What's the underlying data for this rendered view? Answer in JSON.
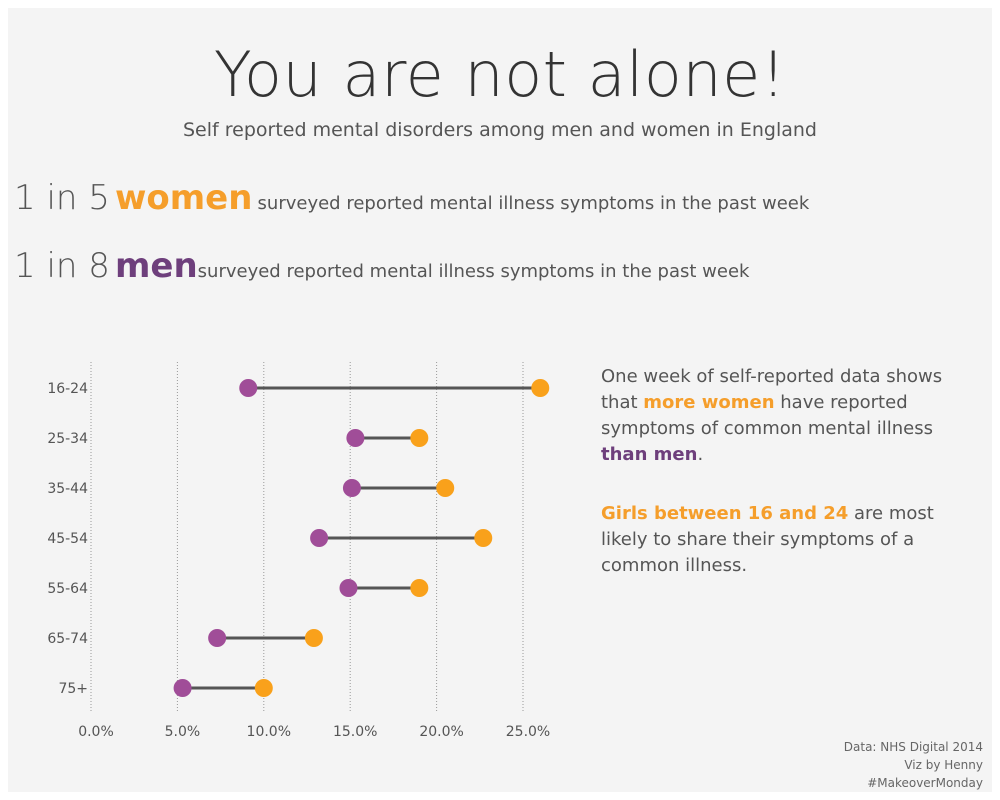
{
  "title": "You are not alone!",
  "subtitle": "Self reported mental disorders among men and women in England",
  "stats": {
    "women": {
      "prefix": "1 in 5",
      "group": "women",
      "text": "surveyed reported mental illness symptoms in the past week"
    },
    "men": {
      "prefix": "1 in 8",
      "group": "men",
      "text": "surveyed reported mental illness symptoms in the past week"
    }
  },
  "notes": {
    "p1_a": "One week of self-reported data shows that ",
    "p1_b": "more women",
    "p1_c": " have reported symptoms of common mental illness ",
    "p1_d": "than men",
    "p1_e": ".",
    "p2_a": "Girls between 16 and 24",
    "p2_b": " are most likely to share their symptoms of a common illness."
  },
  "credits": {
    "line1": "Data: NHS Digital 2014",
    "line2": "Viz by Henny",
    "line3": "#MakeoverMonday"
  },
  "colors": {
    "women": "#f9a11b",
    "men": "#a04d98",
    "connector": "#555555",
    "grid": "#999999"
  },
  "chart_data": {
    "type": "dumbbell",
    "categories": [
      "16-24",
      "25-34",
      "35-44",
      "45-54",
      "55-64",
      "65-74",
      "75+"
    ],
    "series": [
      {
        "values": [
          9.1,
          15.3,
          15.1,
          13.2,
          14.9,
          7.3,
          5.3
        ]
      },
      {
        "values": [
          26.0,
          19.0,
          20.5,
          22.7,
          19.0,
          12.9,
          10.0
        ]
      }
    ],
    "x_ticks": [
      "0.0%",
      "5.0%",
      "10.0%",
      "15.0%",
      "20.0%",
      "25.0%"
    ],
    "x_tick_values": [
      0,
      5,
      10,
      15,
      20,
      25
    ],
    "xlim": [
      0,
      25
    ]
  }
}
